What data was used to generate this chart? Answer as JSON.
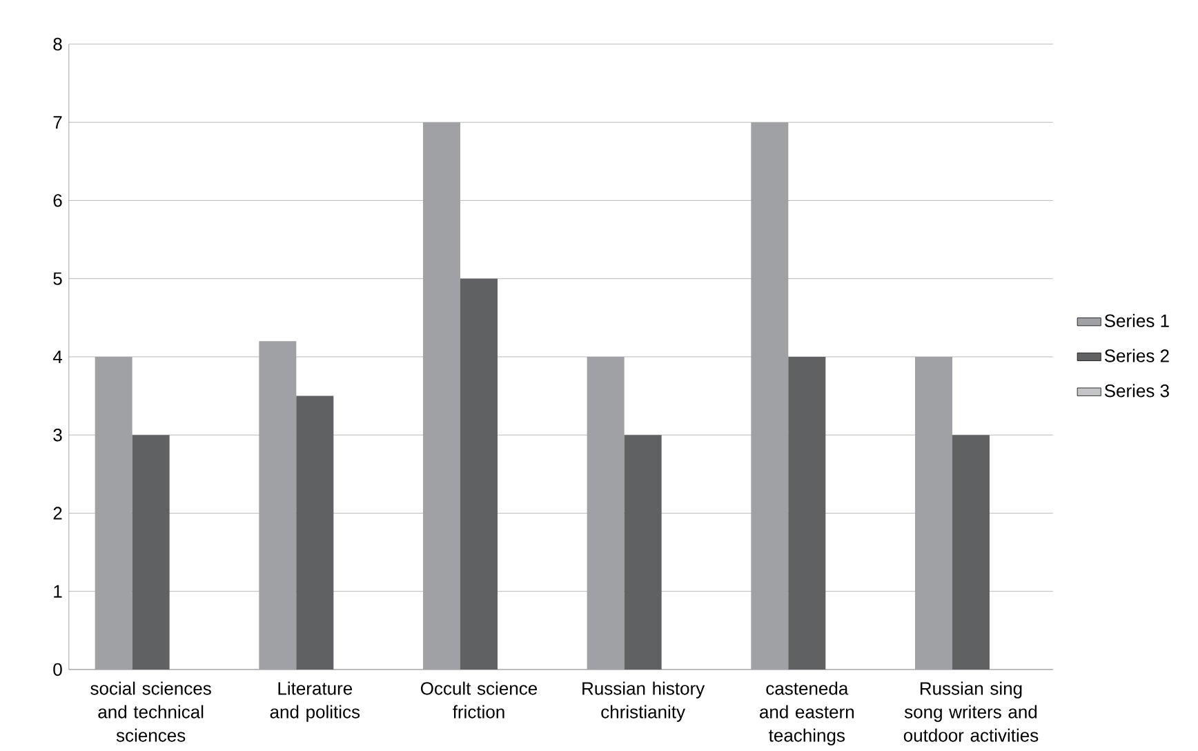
{
  "chart_data": {
    "type": "bar",
    "categories": [
      "social sciences and technical sciences",
      "Literature and politics",
      "Occult science friction",
      "Russian history christianity",
      "casteneda and eastern teachings",
      "Russian sing song writers and outdoor activities"
    ],
    "series": [
      {
        "name": "Series 1",
        "color": "#a0a1a5",
        "values": [
          4,
          4.2,
          7,
          4,
          7,
          4
        ]
      },
      {
        "name": "Series 2",
        "color": "#606163",
        "values": [
          3,
          3.5,
          5,
          3,
          4,
          3
        ]
      },
      {
        "name": "Series 3",
        "color": "#c4c5c7",
        "values": [
          null,
          null,
          null,
          null,
          null,
          null
        ]
      }
    ],
    "ylim": [
      0,
      8
    ],
    "yticks": [
      0,
      1,
      2,
      3,
      4,
      5,
      6,
      7,
      8
    ],
    "grid": "y",
    "legend": "right"
  }
}
